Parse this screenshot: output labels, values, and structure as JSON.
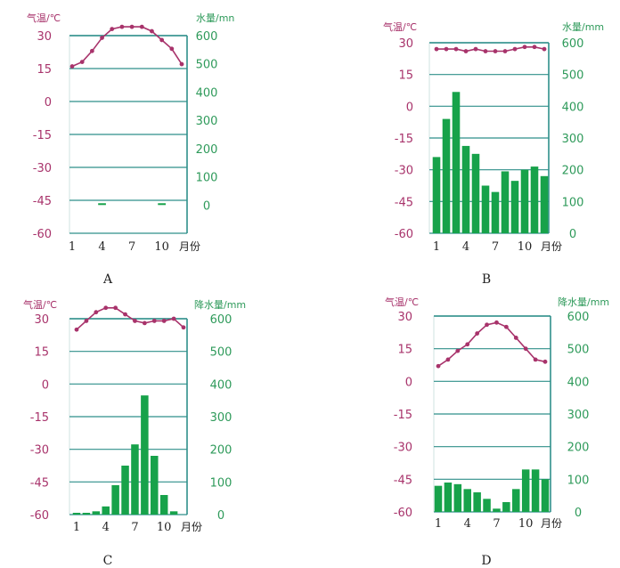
{
  "colors": {
    "temp": "#a8336b",
    "precip_bar": "#17a24a",
    "precip_text": "#2e9a5a",
    "grid": "#2f8f8a",
    "axis_text": "#a8336b"
  },
  "chart_data": [
    {
      "type": "bar",
      "letter": "A",
      "temp_axis_title": "气温/℃",
      "precip_axis_title": "水量/mn",
      "month_unit": "月份",
      "x_tick_labels": [
        "1",
        "4",
        "7",
        "10"
      ],
      "temp_ticks": [
        30,
        15,
        0,
        -15,
        -30,
        -45,
        -60
      ],
      "precip_ticks": [
        600,
        500,
        400,
        300,
        200,
        100,
        0
      ],
      "temp_range": [
        -60,
        30
      ],
      "precip_range": [
        -100,
        600
      ],
      "months": [
        1,
        2,
        3,
        4,
        5,
        6,
        7,
        8,
        9,
        10,
        11,
        12
      ],
      "temperature": [
        16,
        18,
        23,
        29,
        33,
        34,
        34,
        34,
        32,
        28,
        24,
        17
      ],
      "precipitation": [
        0,
        0,
        0,
        1,
        0,
        0,
        0,
        0,
        0,
        1,
        0,
        0
      ]
    },
    {
      "type": "bar",
      "letter": "B",
      "temp_axis_title": "气温/℃",
      "precip_axis_title": "水量/mm",
      "month_unit": "月份",
      "x_tick_labels": [
        "1",
        "4",
        "7",
        "10"
      ],
      "temp_ticks": [
        30,
        15,
        0,
        -15,
        -30,
        -45,
        -60
      ],
      "precip_ticks": [
        600,
        500,
        400,
        300,
        200,
        100,
        0
      ],
      "temp_range": [
        -60,
        30
      ],
      "precip_range": [
        0,
        600
      ],
      "months": [
        1,
        2,
        3,
        4,
        5,
        6,
        7,
        8,
        9,
        10,
        11,
        12
      ],
      "temperature": [
        27,
        27,
        27,
        26,
        27,
        26,
        26,
        26,
        27,
        28,
        28,
        27
      ],
      "precipitation": [
        240,
        360,
        445,
        275,
        250,
        150,
        130,
        195,
        165,
        200,
        210,
        180
      ]
    },
    {
      "type": "bar",
      "letter": "C",
      "temp_axis_title": "气温/℃",
      "precip_axis_title": "降水量/mm",
      "month_unit": "月份",
      "x_tick_labels": [
        "1",
        "4",
        "7",
        "10"
      ],
      "temp_ticks": [
        30,
        15,
        0,
        -15,
        -30,
        -45,
        -60
      ],
      "precip_ticks": [
        600,
        500,
        400,
        300,
        200,
        100,
        0
      ],
      "temp_range": [
        -60,
        30
      ],
      "precip_range": [
        0,
        600
      ],
      "months": [
        1,
        2,
        3,
        4,
        5,
        6,
        7,
        8,
        9,
        10,
        11,
        12
      ],
      "temperature": [
        25,
        29,
        33,
        35,
        35,
        32,
        29,
        28,
        29,
        29,
        30,
        26
      ],
      "precipitation": [
        5,
        2,
        10,
        25,
        90,
        150,
        215,
        365,
        180,
        60,
        10,
        0
      ]
    },
    {
      "type": "bar",
      "letter": "D",
      "temp_axis_title": "气温/℃",
      "precip_axis_title": "降水量/mm",
      "month_unit": "月份",
      "x_tick_labels": [
        "1",
        "4",
        "7",
        "10"
      ],
      "temp_ticks": [
        30,
        15,
        0,
        -15,
        -30,
        -45,
        -60
      ],
      "precip_ticks": [
        600,
        500,
        400,
        300,
        200,
        100,
        0
      ],
      "temp_range": [
        -60,
        30
      ],
      "precip_range": [
        0,
        600
      ],
      "months": [
        1,
        2,
        3,
        4,
        5,
        6,
        7,
        8,
        9,
        10,
        11,
        12
      ],
      "temperature": [
        7,
        10,
        14,
        17,
        22,
        26,
        27,
        25,
        20,
        15,
        10,
        9
      ],
      "precipitation": [
        80,
        90,
        85,
        70,
        60,
        40,
        10,
        30,
        70,
        130,
        130,
        100
      ]
    }
  ]
}
